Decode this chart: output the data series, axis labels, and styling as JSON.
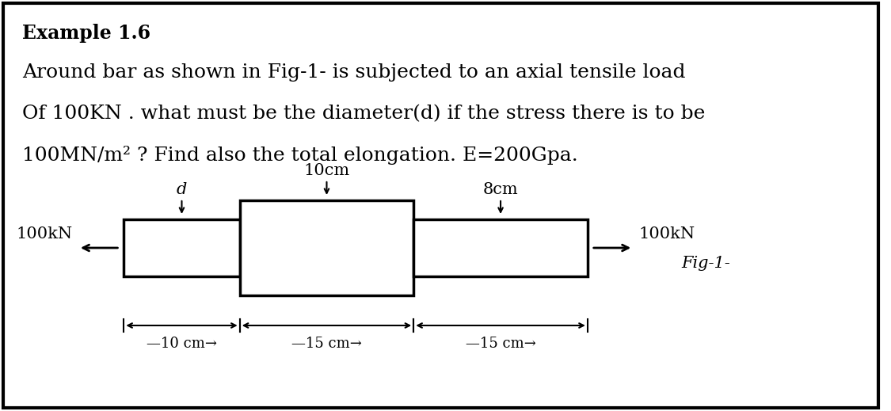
{
  "title": "Example 1.6",
  "problem_text_lines": [
    "Around bar as shown in Fig-1- is subjected to an axial tensile load",
    "Of 100KN . what must be the diameter(d) if the stress there is to be",
    "100MN/m² ? Find also the total elongation. E=200Gpa."
  ],
  "bg_color": "#ffffff",
  "fig_label": "Fig-1-",
  "load_label": "100kN",
  "seg1_label": "d",
  "seg2_label": "10cm",
  "seg3_label": "8cm",
  "dim1": "—10 cm→",
  "dim2": "—15 cm→",
  "dim3": "—15 cm→",
  "title_fontsize": 17,
  "body_fontsize": 18
}
